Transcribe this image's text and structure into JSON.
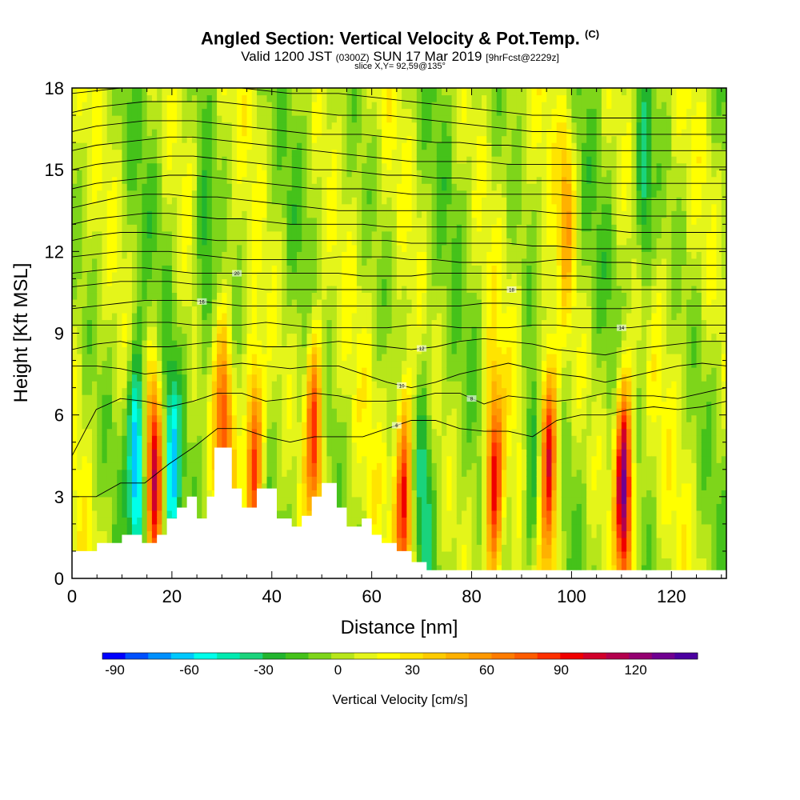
{
  "title": {
    "main": "Angled Section: Vertical Velocity & Pot.Temp.",
    "copyright": "(C)",
    "valid_prefix": "Valid 1200 JST",
    "valid_z": "(0300Z)",
    "valid_date": "SUN 17 Mar 2019",
    "forecast": "[9hrFcst@2229z]",
    "slice": "slice X,Y= 92,59@135°"
  },
  "chart_data": {
    "type": "heatmap",
    "xlabel": "Distance [nm]",
    "ylabel": "Height [Kft MSL]",
    "xlim": [
      0,
      131
    ],
    "ylim": [
      0,
      18
    ],
    "x_ticks": [
      0,
      20,
      40,
      60,
      80,
      100,
      120
    ],
    "y_ticks": [
      0,
      3,
      6,
      9,
      12,
      15,
      18
    ],
    "velocity_peaks": [
      {
        "x": 13,
        "z": 4.5,
        "w": -80
      },
      {
        "x": 16.5,
        "z": 4.0,
        "w": 100
      },
      {
        "x": 20,
        "z": 3.5,
        "w": -60
      },
      {
        "x": 26.5,
        "z": 11.0,
        "w": -40
      },
      {
        "x": 30.5,
        "z": 5.5,
        "w": 65
      },
      {
        "x": 36.5,
        "z": 4.5,
        "w": 90
      },
      {
        "x": 48.5,
        "z": 5.5,
        "w": 90
      },
      {
        "x": 66.5,
        "z": 3.0,
        "w": 95
      },
      {
        "x": 70.5,
        "z": 3.5,
        "w": -35
      },
      {
        "x": 84.5,
        "z": 3.5,
        "w": 100
      },
      {
        "x": 92,
        "z": 4.0,
        "w": -45
      },
      {
        "x": 95.5,
        "z": 4.5,
        "w": 100
      },
      {
        "x": 99,
        "z": 14.0,
        "w": 45
      },
      {
        "x": 110.5,
        "z": 3.5,
        "w": 135
      },
      {
        "x": 114.5,
        "z": 14.0,
        "w": -45
      }
    ],
    "terrain_kft": [
      [
        0,
        1.0
      ],
      [
        5,
        1.3
      ],
      [
        10,
        1.6
      ],
      [
        14,
        1.3
      ],
      [
        17,
        1.6
      ],
      [
        19,
        2.2
      ],
      [
        21,
        2.6
      ],
      [
        23,
        3.0
      ],
      [
        25,
        2.2
      ],
      [
        27,
        3.0
      ],
      [
        28.5,
        4.8
      ],
      [
        31,
        4.8
      ],
      [
        32,
        3.3
      ],
      [
        34,
        2.6
      ],
      [
        37,
        3.3
      ],
      [
        41,
        2.2
      ],
      [
        44,
        1.9
      ],
      [
        46,
        2.3
      ],
      [
        48,
        3.0
      ],
      [
        50,
        3.5
      ],
      [
        53,
        2.6
      ],
      [
        55,
        1.9
      ],
      [
        58,
        2.2
      ],
      [
        60,
        1.6
      ],
      [
        62,
        1.3
      ],
      [
        65,
        1.0
      ],
      [
        68,
        0.6
      ],
      [
        71,
        0.3
      ],
      [
        131,
        0.3
      ]
    ],
    "theta_contours": [
      {
        "label": "6",
        "label_x": 65,
        "kft": [
          3.0,
          3.0,
          3.5,
          3.5,
          4.2,
          4.8,
          5.5,
          5.5,
          5.2,
          5.0,
          5.2,
          5.2,
          5.2,
          5.5,
          5.8,
          5.8,
          5.5,
          5.4,
          5.4,
          5.2,
          5.8,
          6.0,
          6.0,
          6.2,
          6.3,
          6.2,
          6.3,
          6.5
        ]
      },
      {
        "label": "8",
        "label_x": 80,
        "kft": [
          4.5,
          6.2,
          6.6,
          6.5,
          6.3,
          6.5,
          6.8,
          6.8,
          6.5,
          6.6,
          6.8,
          6.7,
          6.5,
          6.5,
          6.6,
          6.8,
          6.8,
          6.4,
          6.7,
          6.6,
          6.5,
          6.6,
          6.8,
          6.7,
          6.7,
          6.6,
          6.8,
          7.0
        ]
      },
      {
        "label": "10",
        "label_x": 66,
        "kft": [
          7.8,
          7.8,
          7.7,
          7.5,
          7.6,
          7.7,
          7.8,
          7.9,
          7.8,
          7.7,
          7.8,
          7.8,
          7.5,
          7.2,
          7.0,
          7.2,
          7.5,
          7.7,
          7.9,
          7.7,
          7.5,
          7.4,
          7.2,
          7.4,
          7.6,
          7.8,
          7.9,
          7.8
        ]
      },
      {
        "label": "12",
        "label_x": 70,
        "kft": [
          8.4,
          8.6,
          8.7,
          8.5,
          8.5,
          8.6,
          8.7,
          8.6,
          8.5,
          8.5,
          8.6,
          8.7,
          8.6,
          8.5,
          8.4,
          8.5,
          8.7,
          8.8,
          8.7,
          8.6,
          8.4,
          8.3,
          8.2,
          8.4,
          8.5,
          8.6,
          8.7,
          8.7
        ]
      },
      {
        "label": "14",
        "label_x": 110,
        "kft": [
          9.3,
          9.3,
          9.3,
          9.4,
          9.4,
          9.3,
          9.3,
          9.3,
          9.4,
          9.3,
          9.2,
          9.2,
          9.2,
          9.2,
          9.3,
          9.3,
          9.2,
          9.2,
          9.2,
          9.3,
          9.3,
          9.2,
          9.2,
          9.2,
          9.3,
          9.3,
          9.3,
          9.3
        ]
      },
      {
        "label": "16",
        "label_x": 26,
        "kft": [
          9.9,
          10.0,
          10.1,
          10.2,
          10.2,
          10.2,
          10.1,
          10.0,
          10.0,
          10.0,
          10.0,
          10.0,
          10.0,
          10.0,
          10.0,
          10.0,
          10.0,
          10.1,
          10.1,
          10.0,
          9.9,
          9.9,
          9.9,
          9.9,
          10.0,
          10.0,
          10.0,
          10.0
        ]
      },
      {
        "label": "18",
        "label_x": 88,
        "kft": [
          10.7,
          10.8,
          10.9,
          10.9,
          10.9,
          10.8,
          10.8,
          10.7,
          10.6,
          10.6,
          10.6,
          10.6,
          10.6,
          10.6,
          10.6,
          10.6,
          10.6,
          10.6,
          10.6,
          10.6,
          10.6,
          10.6,
          10.6,
          10.6,
          10.6,
          10.6,
          10.6,
          10.6
        ]
      },
      {
        "label": "20",
        "label_x": 33,
        "kft": [
          11.2,
          11.3,
          11.4,
          11.4,
          11.3,
          11.2,
          11.2,
          11.2,
          11.2,
          11.2,
          11.2,
          11.2,
          11.1,
          11.1,
          11.1,
          11.2,
          11.2,
          11.2,
          11.2,
          11.2,
          11.1,
          11.1,
          11.0,
          11.0,
          11.0,
          11.0,
          11.0,
          11.0
        ]
      },
      {
        "label": "",
        "label_x": 0,
        "kft": [
          11.8,
          11.9,
          12.0,
          12.0,
          12.0,
          11.9,
          11.8,
          11.7,
          11.7,
          11.7,
          11.7,
          11.8,
          11.8,
          11.8,
          11.7,
          11.7,
          11.6,
          11.6,
          11.6,
          11.6,
          11.7,
          11.7,
          11.6,
          11.6,
          11.5,
          11.5,
          11.5,
          11.5
        ]
      },
      {
        "label": "",
        "label_x": 0,
        "kft": [
          12.4,
          12.6,
          12.7,
          12.7,
          12.6,
          12.5,
          12.4,
          12.4,
          12.4,
          12.4,
          12.4,
          12.4,
          12.4,
          12.4,
          12.3,
          12.3,
          12.3,
          12.3,
          12.3,
          12.2,
          12.2,
          12.1,
          12.1,
          12.1,
          12.1,
          12.1,
          12.1,
          12.1
        ]
      },
      {
        "label": "",
        "label_x": 0,
        "kft": [
          13.0,
          13.2,
          13.3,
          13.4,
          13.4,
          13.3,
          13.2,
          13.2,
          13.1,
          13.0,
          13.0,
          13.0,
          13.0,
          12.9,
          12.9,
          12.9,
          12.9,
          12.9,
          12.9,
          12.9,
          12.9,
          12.8,
          12.8,
          12.7,
          12.7,
          12.7,
          12.7,
          12.7
        ]
      },
      {
        "label": "",
        "label_x": 0,
        "kft": [
          13.6,
          13.8,
          14.0,
          14.1,
          14.1,
          14.0,
          14.0,
          13.9,
          13.8,
          13.7,
          13.6,
          13.5,
          13.5,
          13.5,
          13.5,
          13.5,
          13.5,
          13.5,
          13.5,
          13.5,
          13.4,
          13.4,
          13.4,
          13.3,
          13.3,
          13.3,
          13.3,
          13.3
        ]
      },
      {
        "label": "",
        "label_x": 0,
        "kft": [
          14.3,
          14.5,
          14.6,
          14.7,
          14.8,
          14.8,
          14.7,
          14.6,
          14.5,
          14.4,
          14.3,
          14.3,
          14.3,
          14.2,
          14.1,
          14.1,
          14.1,
          14.1,
          14.1,
          14.1,
          14.1,
          14.0,
          14.0,
          13.9,
          13.9,
          13.9,
          13.9,
          13.9
        ]
      },
      {
        "label": "",
        "label_x": 0,
        "kft": [
          15.0,
          15.2,
          15.3,
          15.4,
          15.5,
          15.5,
          15.4,
          15.3,
          15.2,
          15.1,
          15.0,
          15.0,
          14.9,
          14.8,
          14.8,
          14.7,
          14.7,
          14.6,
          14.6,
          14.6,
          14.6,
          14.6,
          14.5,
          14.5,
          14.5,
          14.5,
          14.5,
          14.5
        ]
      },
      {
        "label": "",
        "label_x": 0,
        "kft": [
          15.7,
          15.9,
          16.0,
          16.1,
          16.2,
          16.2,
          16.1,
          16.0,
          15.9,
          15.8,
          15.7,
          15.6,
          15.5,
          15.4,
          15.3,
          15.3,
          15.3,
          15.3,
          15.2,
          15.2,
          15.2,
          15.2,
          15.1,
          15.1,
          15.1,
          15.1,
          15.1,
          15.1
        ]
      },
      {
        "label": "",
        "label_x": 0,
        "kft": [
          16.4,
          16.6,
          16.7,
          16.8,
          16.8,
          16.8,
          16.7,
          16.6,
          16.5,
          16.4,
          16.3,
          16.3,
          16.3,
          16.2,
          16.1,
          16.0,
          16.0,
          15.9,
          15.9,
          15.8,
          15.8,
          15.7,
          15.7,
          15.7,
          15.7,
          15.7,
          15.7,
          15.7
        ]
      },
      {
        "label": "",
        "label_x": 0,
        "kft": [
          17.1,
          17.3,
          17.4,
          17.5,
          17.5,
          17.5,
          17.5,
          17.4,
          17.3,
          17.2,
          17.1,
          17.0,
          17.0,
          17.0,
          16.9,
          16.8,
          16.7,
          16.6,
          16.5,
          16.4,
          16.4,
          16.3,
          16.3,
          16.3,
          16.3,
          16.3,
          16.3,
          16.3
        ]
      },
      {
        "label": "",
        "label_x": 0,
        "kft": [
          17.8,
          17.9,
          18.0,
          18.0,
          18.0,
          18.0,
          18.0,
          18.0,
          17.9,
          17.8,
          17.8,
          17.8,
          17.7,
          17.6,
          17.5,
          17.4,
          17.3,
          17.2,
          17.1,
          17.0,
          17.0,
          16.9,
          16.9,
          16.9,
          16.9,
          16.9,
          16.9,
          16.9
        ]
      }
    ],
    "colorbar": {
      "title": "Vertical Velocity [cm/s]",
      "tick_values": [
        -90,
        -60,
        -30,
        0,
        30,
        60,
        90,
        120
      ],
      "tick_labels": [
        "-90",
        "-60",
        "-30",
        "0",
        "30",
        "60",
        "90",
        "120"
      ],
      "range": [
        -95,
        145
      ],
      "colors": [
        "#0000ff",
        "#0050ff",
        "#0090ff",
        "#00c8ff",
        "#00ffea",
        "#00eab0",
        "#1ad37c",
        "#22b52e",
        "#45c21a",
        "#7ed51a",
        "#b7e61a",
        "#e4f51a",
        "#ffff00",
        "#ffe400",
        "#ffcb00",
        "#ffb100",
        "#ff9800",
        "#ff7c00",
        "#ff5c00",
        "#ff3000",
        "#f00000",
        "#d1002a",
        "#b3004d",
        "#940070",
        "#700090",
        "#4b00a0"
      ]
    }
  }
}
